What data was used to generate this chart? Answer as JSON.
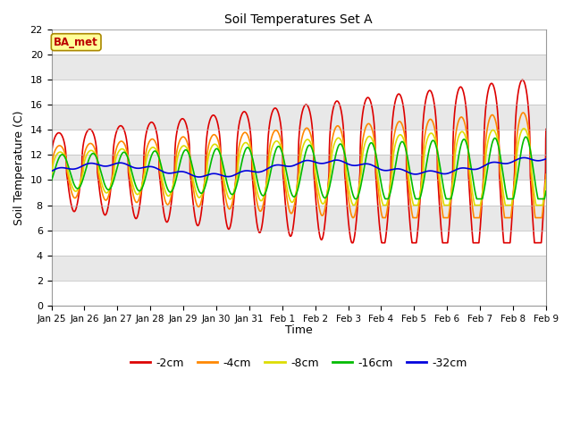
{
  "title": "Soil Temperatures Set A",
  "xlabel": "Time",
  "ylabel": "Soil Temperature (C)",
  "ylim": [
    0,
    22
  ],
  "yticks": [
    0,
    2,
    4,
    6,
    8,
    10,
    12,
    14,
    16,
    18,
    20,
    22
  ],
  "xtick_labels": [
    "Jan 25",
    "Jan 26",
    "Jan 27",
    "Jan 28",
    "Jan 29",
    "Jan 30",
    "Jan 31",
    "Feb 1",
    "Feb 2",
    "Feb 3",
    "Feb 4",
    "Feb 5",
    "Feb 6",
    "Feb 7",
    "Feb 8",
    "Feb 9"
  ],
  "colors": {
    "-2cm": "#dd0000",
    "-4cm": "#ff8800",
    "-8cm": "#dddd00",
    "-16cm": "#00bb00",
    "-32cm": "#0000dd"
  },
  "plot_bg_colors": [
    "#ffffff",
    "#e8e8e8"
  ],
  "num_days": 16,
  "base_temp": 10.7,
  "annotation_text": "BA_met",
  "figsize": [
    6.4,
    4.8
  ],
  "dpi": 100
}
